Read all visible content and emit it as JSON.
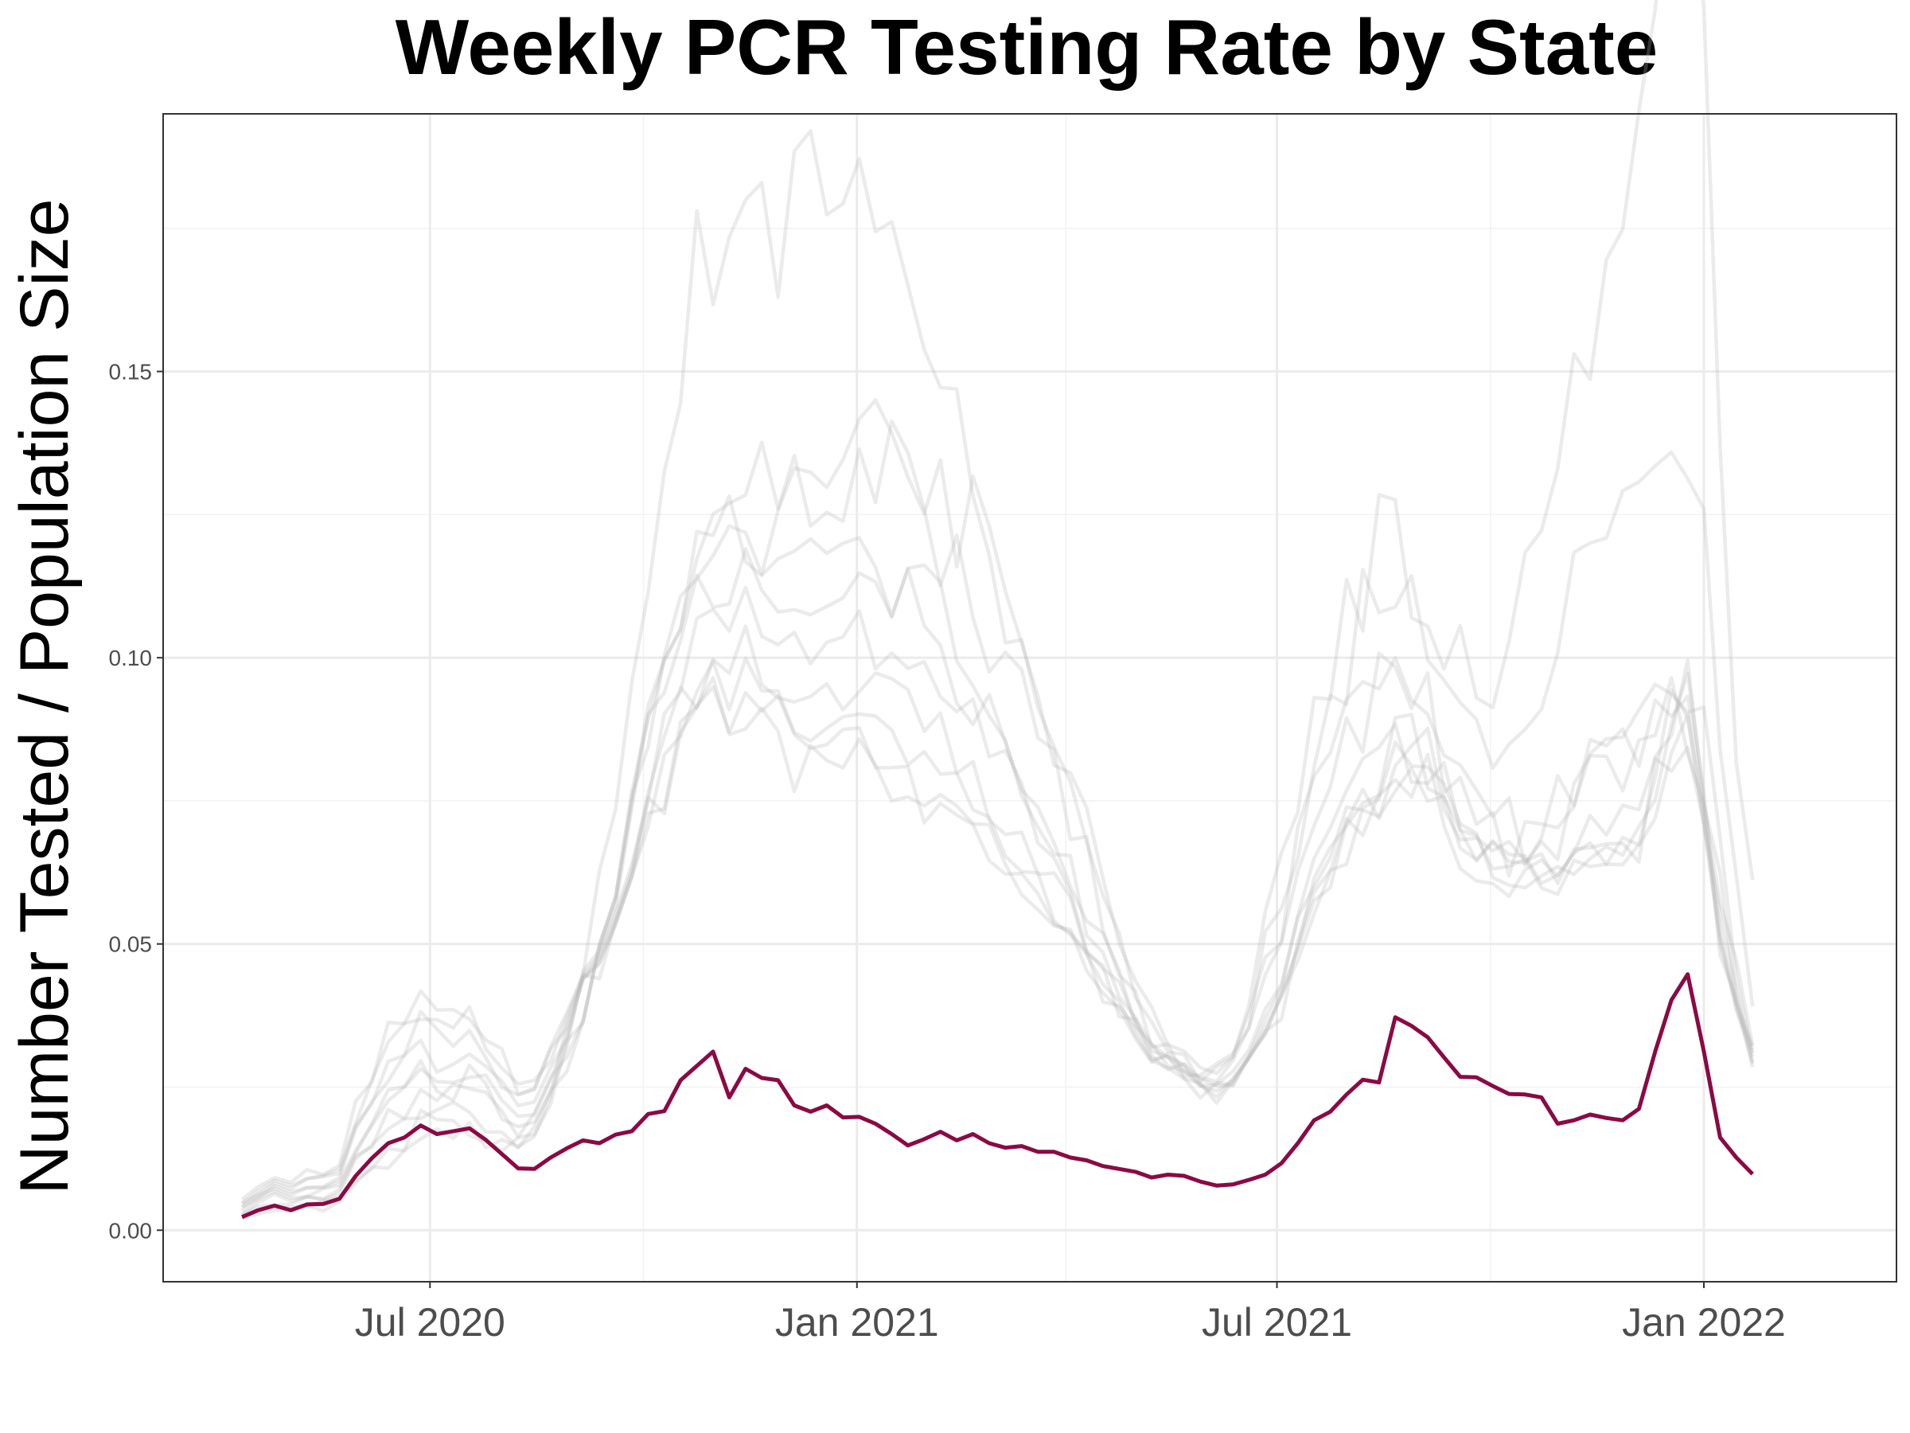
{
  "chart_data": {
    "type": "line",
    "title": "Weekly PCR Testing Rate by State",
    "xlabel": "",
    "ylabel": "Number Tested / Population Size",
    "x_type": "date",
    "xlim": [
      "2020-03-08",
      "2022-03-25"
    ],
    "ylim": [
      -0.009,
      0.195
    ],
    "x_ticks": [
      {
        "date": "2020-07-01",
        "label": "Jul 2020"
      },
      {
        "date": "2021-01-01",
        "label": "Jan 2021"
      },
      {
        "date": "2021-07-01",
        "label": "Jul 2021"
      },
      {
        "date": "2022-01-01",
        "label": "Jan 2022"
      }
    ],
    "x_minor_ticks": [
      "2020-10-01",
      "2021-04-01",
      "2021-10-01"
    ],
    "y_ticks": [
      {
        "value": 0.0,
        "label": "0.00"
      },
      {
        "value": 0.05,
        "label": "0.05"
      },
      {
        "value": 0.1,
        "label": "0.10"
      },
      {
        "value": 0.15,
        "label": "0.15"
      }
    ],
    "y_minor_ticks": [
      0.025,
      0.075,
      0.125,
      0.175
    ],
    "grid": true,
    "legend": "none",
    "colors": {
      "highlight": "#8b0a43",
      "background_states": "#b8b8b8"
    },
    "highlight_series": {
      "start": "2020-04-11",
      "interval_days": 7,
      "values": [
        0.0023,
        0.0035,
        0.0043,
        0.0035,
        0.0045,
        0.0046,
        0.0055,
        0.0095,
        0.0126,
        0.0152,
        0.0162,
        0.0183,
        0.0168,
        0.0173,
        0.0178,
        0.0158,
        0.0133,
        0.0108,
        0.0107,
        0.0127,
        0.0143,
        0.0157,
        0.0152,
        0.0167,
        0.0173,
        0.0203,
        0.0208,
        0.0262,
        0.0287,
        0.0312,
        0.0232,
        0.0282,
        0.0266,
        0.0262,
        0.0218,
        0.0207,
        0.0218,
        0.0197,
        0.0198,
        0.0186,
        0.0168,
        0.0148,
        0.0159,
        0.0172,
        0.0157,
        0.0168,
        0.0152,
        0.0144,
        0.0147,
        0.0137,
        0.0137,
        0.0127,
        0.0122,
        0.0112,
        0.0107,
        0.0102,
        0.0092,
        0.0097,
        0.0095,
        0.0085,
        0.0078,
        0.008,
        0.0088,
        0.0097,
        0.0117,
        0.0152,
        0.0192,
        0.0207,
        0.0237,
        0.0263,
        0.0258,
        0.0372,
        0.0357,
        0.0337,
        0.0302,
        0.0268,
        0.0267,
        0.0252,
        0.0238,
        0.0237,
        0.0232,
        0.0186,
        0.0192,
        0.0202,
        0.0196,
        0.0192,
        0.0212,
        0.0312,
        0.0402,
        0.0447,
        0.0312,
        0.0162,
        0.0127,
        0.0098
      ]
    },
    "background_series": [
      {
        "start": "2020-04-11",
        "interval_days": 7,
        "peak_values": [
          0.15,
          0.155,
          0.098,
          0.123,
          0.186,
          0.171,
          0.082
        ]
      },
      {
        "start": "2020-04-11",
        "interval_days": 7,
        "peak_values": [
          0.109,
          0.102,
          0.094,
          0.112,
          0.128,
          0.082
        ]
      },
      {
        "start": "2020-04-11",
        "interval_days": 7,
        "peak_values": [
          0.104,
          0.099,
          0.102,
          0.097,
          0.088,
          0.055
        ]
      },
      {
        "start": "2020-04-11",
        "interval_days": 7,
        "peak_values": [
          0.098,
          0.09,
          0.075,
          0.088,
          0.078,
          0.048
        ]
      },
      {
        "start": "2020-04-11",
        "interval_days": 7,
        "peak_values": [
          0.088,
          0.08,
          0.073,
          0.069,
          0.075,
          0.04
        ]
      },
      {
        "start": "2020-04-11",
        "interval_days": 7,
        "peak_values": [
          0.079,
          0.072,
          0.065,
          0.062,
          0.062,
          0.035
        ]
      },
      {
        "start": "2020-04-11",
        "interval_days": 7,
        "peak_values": [
          0.071,
          0.063,
          0.058,
          0.055,
          0.055,
          0.03
        ]
      },
      {
        "start": "2020-04-11",
        "interval_days": 7,
        "peak_values": [
          0.063,
          0.057,
          0.052,
          0.05,
          0.05,
          0.028
        ]
      },
      {
        "start": "2020-04-11",
        "interval_days": 7,
        "peak_values": [
          0.057,
          0.052,
          0.047,
          0.046,
          0.046,
          0.025
        ]
      },
      {
        "start": "2020-04-11",
        "interval_days": 7,
        "peak_values": [
          0.052,
          0.047,
          0.043,
          0.042,
          0.042,
          0.023
        ]
      }
    ]
  }
}
